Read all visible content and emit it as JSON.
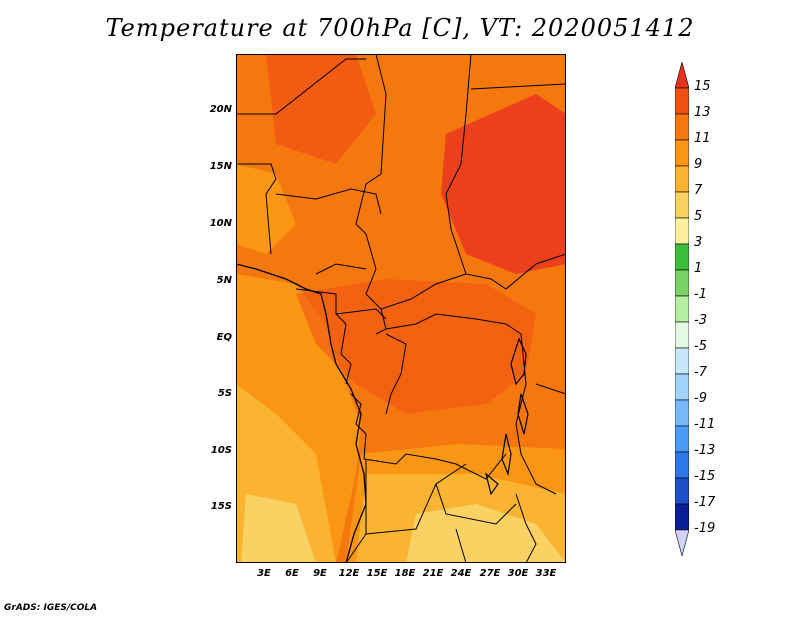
{
  "title": "Temperature at 700hPa [C], VT: 2020051412",
  "credit": "GrADS: IGES/COLA",
  "y_ticks": [
    "20N",
    "15N",
    "10N",
    "5N",
    "EQ",
    "5S",
    "10S",
    "15S"
  ],
  "x_ticks": [
    "3E",
    "6E",
    "9E",
    "12E",
    "15E",
    "18E",
    "21E",
    "24E",
    "27E",
    "30E",
    "33E"
  ],
  "colorbar": {
    "labels": [
      "15",
      "13",
      "11",
      "9",
      "7",
      "5",
      "3",
      "1",
      "-1",
      "-3",
      "-5",
      "-7",
      "-9",
      "-11",
      "-13",
      "-15",
      "-17",
      "-19"
    ],
    "colors": [
      "#e8321e",
      "#f05014",
      "#f5780f",
      "#fa9614",
      "#fab432",
      "#fad264",
      "#faf0a0",
      "#3cbe3c",
      "#78d264",
      "#b4f0a0",
      "#e1fae1",
      "#c8e6fa",
      "#a0d2fa",
      "#78b9fa",
      "#4b9bf5",
      "#2d78e6",
      "#1e50c8",
      "#0a1e96",
      "#d2d2fa"
    ]
  },
  "map": {
    "region": "Central Africa",
    "lon_range": [
      0,
      35
    ],
    "lat_range": [
      -20,
      24
    ],
    "field": "Temperature at 700hPa (C)"
  }
}
